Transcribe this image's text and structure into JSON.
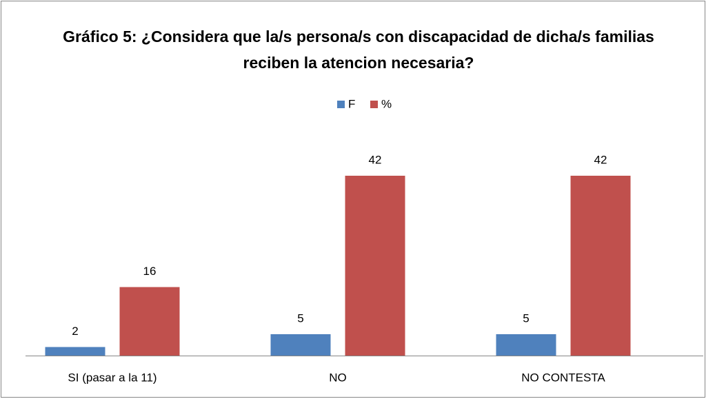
{
  "chart_data": {
    "type": "bar",
    "title": "Gráfico 5: ¿Considera que la/s persona/s con discapacidad de dicha/s familias reciben la atencion necesaria?",
    "categories": [
      "SI (pasar a la 11)",
      "NO",
      "NO CONTESTA"
    ],
    "series": [
      {
        "name": "F",
        "color": "#4f81bd",
        "values": [
          2,
          5,
          5
        ]
      },
      {
        "name": "%",
        "color": "#c0504d",
        "values": [
          16,
          42,
          42
        ]
      }
    ],
    "legend": "top"
  }
}
